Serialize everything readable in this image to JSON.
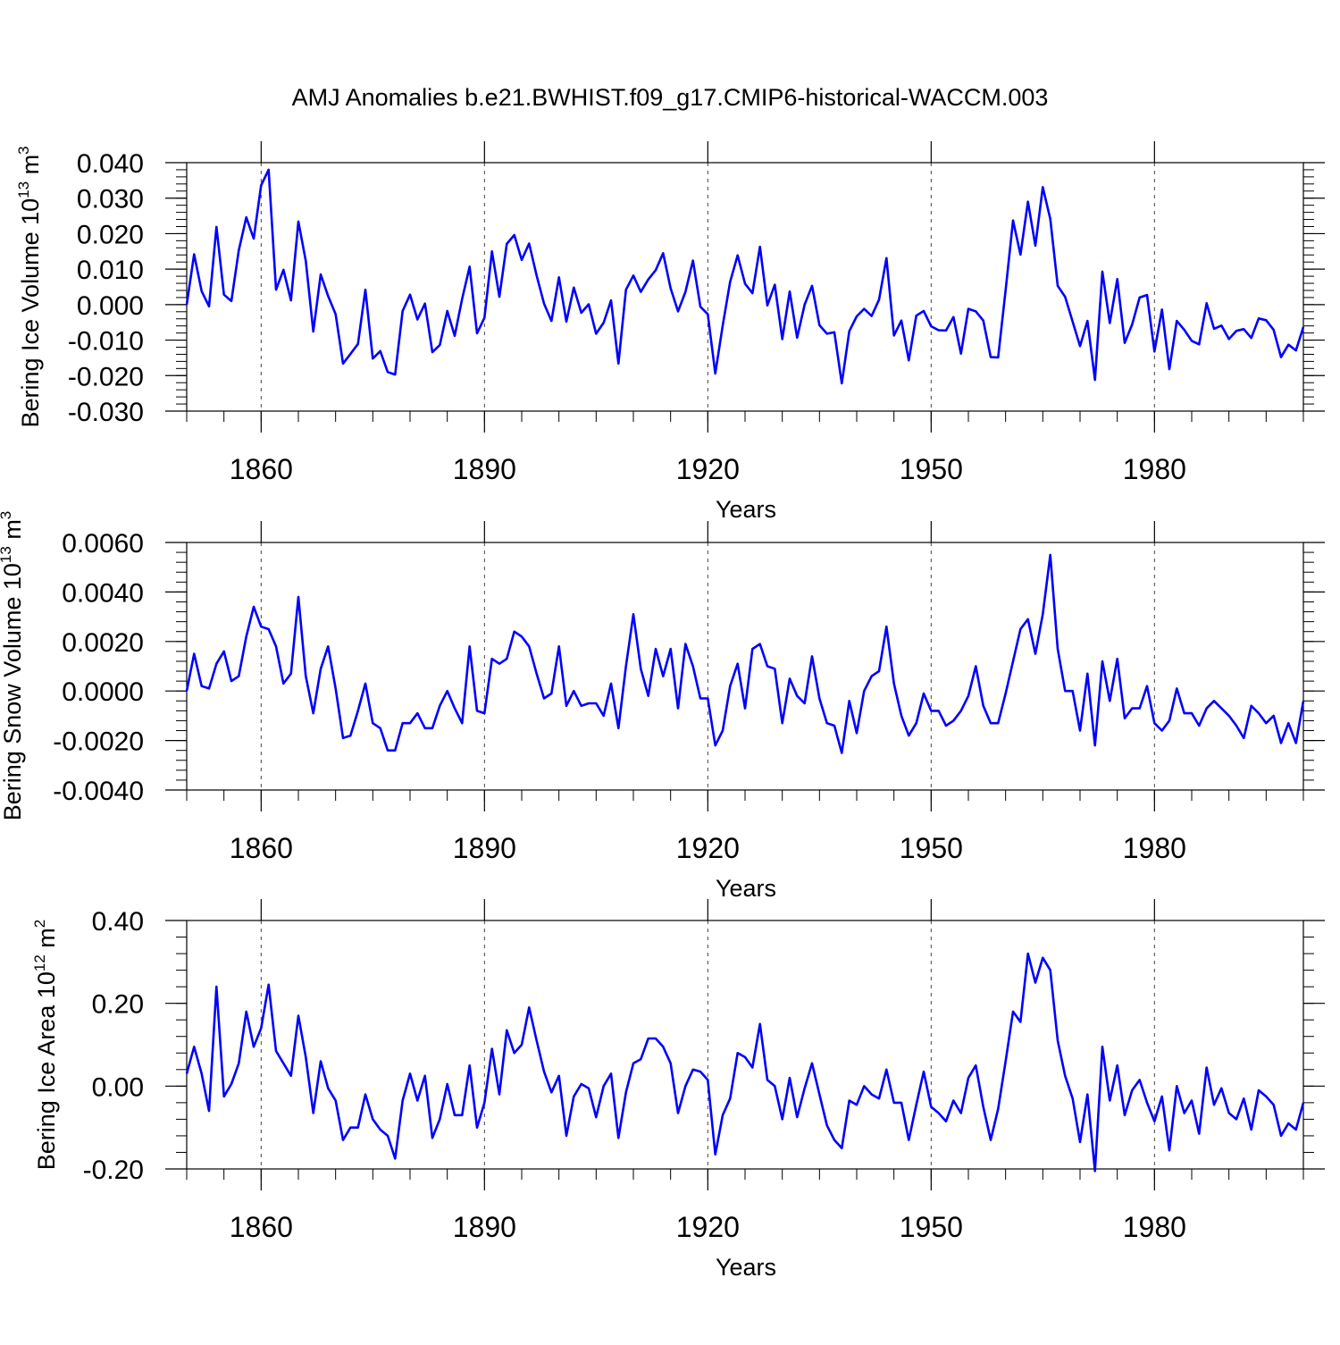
{
  "title": "AMJ Anomalies b.e21.BWHIST.f09_g17.CMIP6-historical-WACCM.003",
  "colors": {
    "line": "#0000ff",
    "axis": "#000000",
    "grid": "#444444"
  },
  "chart_data": [
    {
      "type": "line",
      "name": "ice-volume",
      "ylabel_main": "Bering Ice Volume 10",
      "ylabel_exp": "13",
      "ylabel_unit": " m",
      "ylabel_unit_exp": "3",
      "xlabel": "Years",
      "xlim": [
        1850,
        2000
      ],
      "ylim": [
        -0.03,
        0.04
      ],
      "xticks": [
        1860,
        1890,
        1920,
        1950,
        1980
      ],
      "xtick_labels": [
        "1860",
        "1890",
        "1920",
        "1950",
        "1980"
      ],
      "yticks": [
        -0.03,
        -0.02,
        -0.01,
        0.0,
        0.01,
        0.02,
        0.03,
        0.04
      ],
      "ytick_labels": [
        "-0.030",
        "-0.020",
        "-0.010",
        "0.000",
        "0.010",
        "0.020",
        "0.030",
        "0.040"
      ],
      "x_start": 1850,
      "values": [
        0.0,
        0.0142,
        0.0038,
        -0.0005,
        0.0219,
        0.0028,
        0.001,
        0.0153,
        0.0246,
        0.0186,
        0.0336,
        0.038,
        0.0042,
        0.0098,
        0.0012,
        0.0234,
        0.0123,
        -0.0076,
        0.0085,
        0.0024,
        -0.0027,
        -0.0166,
        -0.0139,
        -0.0111,
        0.0042,
        -0.0152,
        -0.0131,
        -0.019,
        -0.0197,
        -0.0018,
        0.0028,
        -0.0042,
        0.0003,
        -0.0134,
        -0.0114,
        -0.0018,
        -0.0088,
        0.0016,
        0.0107,
        -0.0081,
        -0.0037,
        0.015,
        0.0022,
        0.0171,
        0.0196,
        0.0126,
        0.0172,
        0.0082,
        0.0003,
        -0.0046,
        0.0077,
        -0.0048,
        0.0048,
        -0.0023,
        0.0001,
        -0.0082,
        -0.0051,
        0.0012,
        -0.0166,
        0.0042,
        0.0082,
        0.0036,
        0.0071,
        0.0097,
        0.0145,
        0.0046,
        -0.0019,
        0.0036,
        0.0124,
        -0.0006,
        -0.0027,
        -0.0194,
        -0.0059,
        0.0064,
        0.0139,
        0.0059,
        0.0032,
        0.0163,
        -0.0002,
        0.0056,
        -0.0097,
        0.0037,
        -0.0093,
        0.0,
        0.0053,
        -0.0058,
        -0.0082,
        -0.0078,
        -0.0222,
        -0.0075,
        -0.0033,
        -0.0012,
        -0.0032,
        0.0014,
        0.0131,
        -0.0087,
        -0.0045,
        -0.0157,
        -0.0031,
        -0.0018,
        -0.0061,
        -0.0072,
        -0.0073,
        -0.0035,
        -0.0138,
        -0.0012,
        -0.0019,
        -0.0045,
        -0.0148,
        -0.0149,
        0.0041,
        0.0237,
        0.0141,
        0.029,
        0.0166,
        0.0331,
        0.0241,
        0.0053,
        0.0022,
        -0.0048,
        -0.0117,
        -0.0046,
        -0.0212,
        0.0093,
        -0.0052,
        0.0072,
        -0.0108,
        -0.0056,
        0.002,
        0.0027,
        -0.0132,
        -0.0014,
        -0.0182,
        -0.0046,
        -0.0071,
        -0.0102,
        -0.0112,
        0.0004,
        -0.0068,
        -0.0059,
        -0.0097,
        -0.0074,
        -0.0069,
        -0.0094,
        -0.0039,
        -0.0044,
        -0.0071,
        -0.0148,
        -0.0113,
        -0.0129,
        -0.0063
      ]
    },
    {
      "type": "line",
      "name": "snow-volume",
      "ylabel_main": "Bering Snow Volume 10",
      "ylabel_exp": "13",
      "ylabel_unit": " m",
      "ylabel_unit_exp": "3",
      "xlabel": "Years",
      "xlim": [
        1850,
        2000
      ],
      "ylim": [
        -0.004,
        0.006
      ],
      "xticks": [
        1860,
        1890,
        1920,
        1950,
        1980
      ],
      "xtick_labels": [
        "1860",
        "1890",
        "1920",
        "1950",
        "1980"
      ],
      "yticks": [
        -0.004,
        -0.002,
        0.0,
        0.002,
        0.004,
        0.006
      ],
      "ytick_labels": [
        "-0.0040",
        "-0.0020",
        "0.0000",
        "0.0020",
        "0.0040",
        "0.0060"
      ],
      "x_start": 1850,
      "values": [
        0.0,
        0.0015,
        0.0002,
        0.0001,
        0.0011,
        0.0016,
        0.0004,
        0.0006,
        0.0022,
        0.0034,
        0.0026,
        0.0025,
        0.0018,
        0.0003,
        0.0007,
        0.0038,
        0.0006,
        -0.0009,
        0.0009,
        0.0018,
        0.0001,
        -0.0019,
        -0.0018,
        -0.0008,
        0.0003,
        -0.0013,
        -0.0015,
        -0.0024,
        -0.0024,
        -0.0013,
        -0.0013,
        -0.0009,
        -0.0015,
        -0.0015,
        -0.0006,
        0.0,
        -0.0007,
        -0.0013,
        0.0018,
        -0.0008,
        -0.0009,
        0.0013,
        0.0011,
        0.0013,
        0.0024,
        0.0022,
        0.0018,
        0.0007,
        -0.0003,
        -0.0001,
        0.0018,
        -0.0006,
        0.0,
        -0.0006,
        -0.0005,
        -0.0005,
        -0.001,
        0.0003,
        -0.0015,
        0.001,
        0.0031,
        0.0009,
        -0.0002,
        0.0017,
        0.0006,
        0.0017,
        -0.0007,
        0.0019,
        0.001,
        -0.0003,
        -0.0003,
        -0.0022,
        -0.0016,
        0.0002,
        0.0011,
        -0.0007,
        0.0017,
        0.0019,
        0.001,
        0.0009,
        -0.0013,
        0.0005,
        -0.0002,
        -0.0005,
        0.0014,
        -0.0003,
        -0.0013,
        -0.0014,
        -0.0025,
        -0.0004,
        -0.0017,
        0.0,
        0.0006,
        0.0008,
        0.0026,
        0.0003,
        -0.001,
        -0.0018,
        -0.0013,
        -0.0001,
        -0.0008,
        -0.0008,
        -0.0014,
        -0.0012,
        -0.0008,
        -0.0002,
        0.001,
        -0.0006,
        -0.0013,
        -0.0013,
        -0.0001,
        0.0012,
        0.0025,
        0.0029,
        0.0015,
        0.0031,
        0.0055,
        0.0017,
        0.0,
        0.0,
        -0.0016,
        0.0007,
        -0.0022,
        0.0012,
        -0.0004,
        0.0013,
        -0.0011,
        -0.0007,
        -0.0007,
        0.0002,
        -0.0013,
        -0.0016,
        -0.0012,
        0.0001,
        -0.0009,
        -0.0009,
        -0.0014,
        -0.0007,
        -0.0004,
        -0.0007,
        -0.001,
        -0.0014,
        -0.0019,
        -0.0006,
        -0.0009,
        -0.0013,
        -0.001,
        -0.0021,
        -0.0013,
        -0.0021,
        -0.0004
      ]
    },
    {
      "type": "line",
      "name": "ice-area",
      "ylabel_main": "Bering Ice Area 10",
      "ylabel_exp": "12",
      "ylabel_unit": " m",
      "ylabel_unit_exp": "2",
      "xlabel": "Years",
      "xlim": [
        1850,
        2000
      ],
      "ylim": [
        -0.2,
        0.4
      ],
      "xticks": [
        1860,
        1890,
        1920,
        1950,
        1980
      ],
      "xtick_labels": [
        "1860",
        "1890",
        "1920",
        "1950",
        "1980"
      ],
      "yticks": [
        -0.2,
        0.0,
        0.2,
        0.4
      ],
      "ytick_labels": [
        "-0.20",
        "0.00",
        "0.20",
        "0.40"
      ],
      "x_start": 1850,
      "values": [
        0.03,
        0.095,
        0.03,
        -0.06,
        0.24,
        -0.025,
        0.005,
        0.055,
        0.18,
        0.095,
        0.14,
        0.245,
        0.085,
        0.055,
        0.025,
        0.17,
        0.07,
        -0.065,
        0.06,
        -0.005,
        -0.035,
        -0.13,
        -0.1,
        -0.1,
        -0.02,
        -0.08,
        -0.105,
        -0.12,
        -0.175,
        -0.035,
        0.03,
        -0.035,
        0.025,
        -0.125,
        -0.08,
        0.005,
        -0.07,
        -0.07,
        0.05,
        -0.1,
        -0.04,
        0.09,
        -0.02,
        0.135,
        0.08,
        0.1,
        0.19,
        0.11,
        0.035,
        -0.015,
        0.025,
        -0.12,
        -0.025,
        0.005,
        -0.005,
        -0.075,
        0.0,
        0.03,
        -0.125,
        -0.015,
        0.055,
        0.065,
        0.115,
        0.115,
        0.095,
        0.055,
        -0.065,
        0.0,
        0.04,
        0.035,
        0.015,
        -0.165,
        -0.07,
        -0.03,
        0.08,
        0.07,
        0.045,
        0.15,
        0.015,
        0.0,
        -0.08,
        0.02,
        -0.075,
        -0.005,
        0.055,
        -0.02,
        -0.095,
        -0.13,
        -0.15,
        -0.035,
        -0.045,
        0.0,
        -0.02,
        -0.03,
        0.04,
        -0.04,
        -0.04,
        -0.13,
        -0.045,
        0.035,
        -0.05,
        -0.065,
        -0.085,
        -0.035,
        -0.065,
        0.02,
        0.05,
        -0.05,
        -0.13,
        -0.055,
        0.06,
        0.18,
        0.155,
        0.32,
        0.25,
        0.31,
        0.28,
        0.11,
        0.025,
        -0.03,
        -0.135,
        -0.02,
        -0.205,
        0.095,
        -0.035,
        0.05,
        -0.07,
        -0.01,
        0.015,
        -0.04,
        -0.085,
        -0.025,
        -0.155,
        0.0,
        -0.065,
        -0.035,
        -0.115,
        0.045,
        -0.045,
        -0.005,
        -0.065,
        -0.08,
        -0.03,
        -0.105,
        -0.01,
        -0.025,
        -0.045,
        -0.12,
        -0.09,
        -0.105,
        -0.04
      ]
    }
  ]
}
